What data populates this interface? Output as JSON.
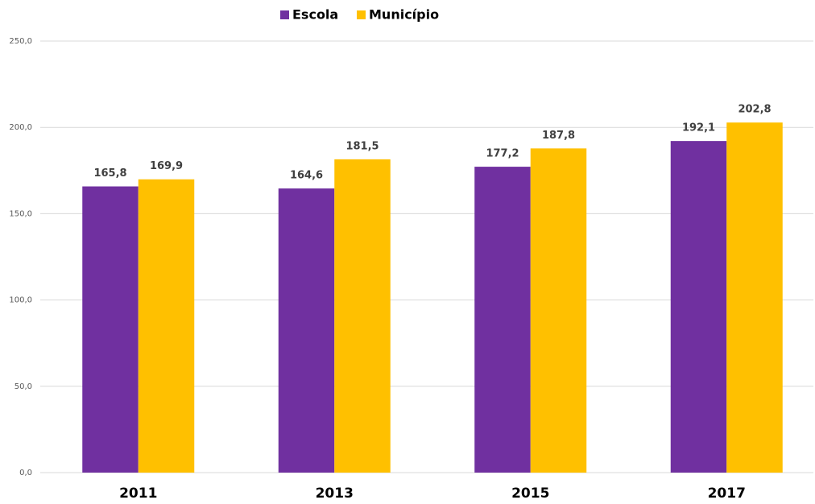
{
  "chart_data": {
    "type": "bar",
    "categories": [
      "2011",
      "2013",
      "2015",
      "2017"
    ],
    "series": [
      {
        "name": "Escola",
        "color": "#7030a0",
        "values": [
          165.8,
          164.6,
          177.2,
          192.1
        ],
        "value_labels": [
          "165,8",
          "164,6",
          "177,2",
          "192,1"
        ]
      },
      {
        "name": "Município",
        "color": "#ffc000",
        "values": [
          169.9,
          181.5,
          187.8,
          202.8
        ],
        "value_labels": [
          "169,9",
          "181,5",
          "187,8",
          "202,8"
        ]
      }
    ],
    "ylim": [
      0,
      250
    ],
    "yticks": [
      {
        "value": 0,
        "label": "0,0"
      },
      {
        "value": 50,
        "label": "50,0"
      },
      {
        "value": 100,
        "label": "100,0"
      },
      {
        "value": 150,
        "label": "150,0"
      },
      {
        "value": 200,
        "label": "200,0"
      },
      {
        "value": 250,
        "label": "250,0"
      }
    ],
    "grid": true,
    "legend": "top"
  }
}
